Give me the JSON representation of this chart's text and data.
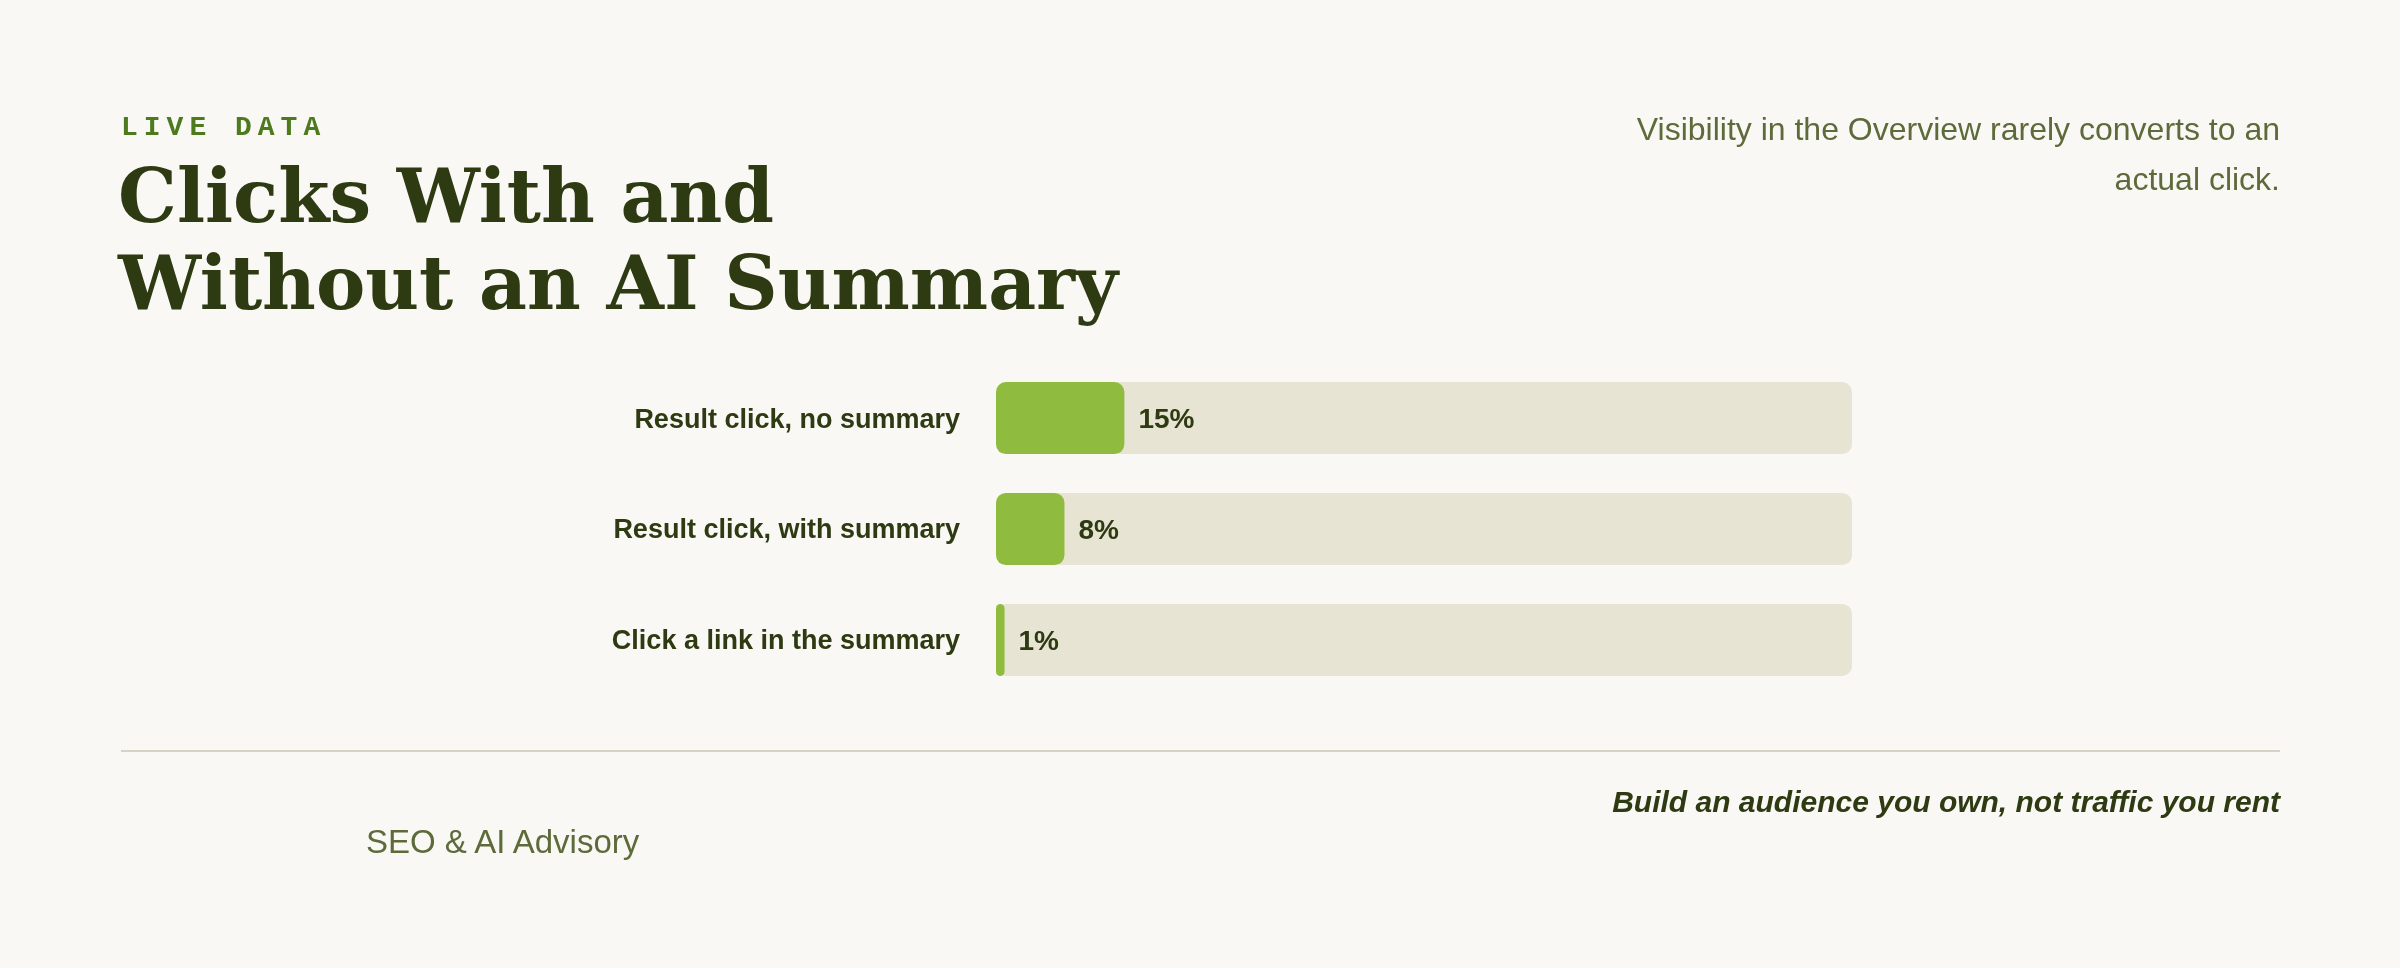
{
  "chart_data": {
    "type": "bar",
    "orientation": "horizontal",
    "title": "Clicks With and Without an AI Summary",
    "subtitle": "Visibility in the Overview rarely converts to an actual click.",
    "categories": [
      "Result click, no summary",
      "Result click, with summary",
      "Click a link in the summary"
    ],
    "values": [
      15,
      8,
      1
    ],
    "color": "#8fbc3f",
    "xlim": [
      0,
      100
    ],
    "tick_labels": "y",
    "value_labels": [
      "15%",
      "8%",
      "1%"
    ],
    "annotations": [
      "LIVE DATA",
      "SEO & AI Advisory",
      "Build an audience you own, not traffic you rent"
    ]
  }
}
